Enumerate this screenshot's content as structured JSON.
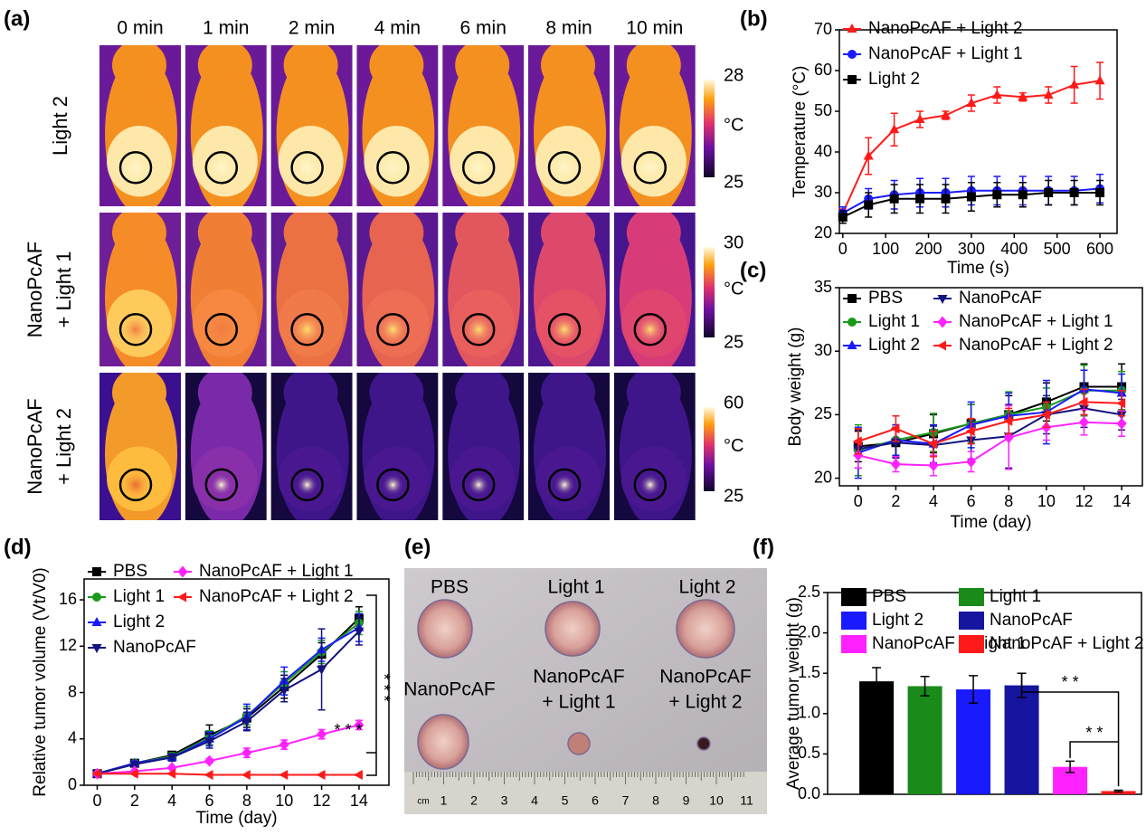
{
  "panel_labels": [
    "(a)",
    "(b)",
    "(c)",
    "(d)",
    "(e)",
    "(f)"
  ],
  "thermal": {
    "times": [
      "0 min",
      "1 min",
      "2 min",
      "4 min",
      "6 min",
      "8 min",
      "10 min"
    ],
    "rows": [
      {
        "label": [
          "Light 2"
        ],
        "max": 28,
        "min": 25
      },
      {
        "label": [
          "NanoPcAF",
          "+ Light 1"
        ],
        "max": 30,
        "min": 25
      },
      {
        "label": [
          "NanoPcAF",
          "+ Light 2"
        ],
        "max": 60,
        "min": 25
      }
    ],
    "unit": "°C"
  },
  "chart_data": [
    {
      "type": "line",
      "x_label": "Time (s)",
      "y_label": "Temperature (°C)",
      "x": [
        0,
        60,
        120,
        180,
        240,
        300,
        360,
        420,
        480,
        540,
        600
      ],
      "xlim": [
        -8,
        640
      ],
      "xticks": [
        0,
        100,
        200,
        300,
        400,
        500,
        600
      ],
      "ylim": [
        20,
        70
      ],
      "yticks": [
        20,
        30,
        40,
        50,
        60,
        70
      ],
      "legend": "upper left",
      "series": [
        {
          "name": "NanoPcAF + Light 2",
          "color": "#ff1a1a",
          "marker": "triangle-up",
          "values": [
            25,
            39,
            45.5,
            48,
            49,
            52,
            54,
            53.5,
            54,
            56.5,
            57.5
          ],
          "errors": [
            1,
            4.5,
            4,
            2,
            1,
            2,
            2,
            1,
            2,
            4.5,
            4.5
          ]
        },
        {
          "name": "NanoPcAF + Light 1",
          "color": "#1a1aff",
          "marker": "circle",
          "values": [
            25,
            28.5,
            29.5,
            30,
            30,
            30.5,
            30.5,
            30.5,
            30.5,
            30.5,
            31
          ],
          "errors": [
            1.5,
            2.5,
            3.5,
            3.5,
            3.5,
            3.5,
            3.5,
            3.5,
            3.5,
            3.5,
            3.5
          ]
        },
        {
          "name": "Light 2",
          "color": "#000000",
          "marker": "square",
          "values": [
            24,
            27,
            28.5,
            28.5,
            28.5,
            29,
            29.5,
            29.5,
            30,
            30,
            30
          ],
          "errors": [
            1.5,
            3,
            3.5,
            3.5,
            3.5,
            3.5,
            3,
            3,
            3,
            3,
            3
          ]
        }
      ]
    },
    {
      "type": "line",
      "x_label": "Time (day)",
      "y_label": "Body weight (g)",
      "x": [
        0,
        2,
        4,
        6,
        8,
        10,
        12,
        14
      ],
      "xlim": [
        -1,
        15.1
      ],
      "xticks": [
        0,
        2,
        4,
        6,
        8,
        10,
        12,
        14
      ],
      "ylim": [
        19.4,
        35
      ],
      "yticks": [
        20,
        25,
        30,
        35
      ],
      "legend": "upper left",
      "series": [
        {
          "name": "PBS",
          "color": "#000000",
          "marker": "square",
          "values": [
            22.5,
            22.8,
            23.5,
            24.3,
            25,
            26,
            27.2,
            27.2
          ],
          "errors": [
            1.2,
            1.2,
            1.5,
            1.5,
            1.5,
            1.5,
            1.8,
            1.8
          ]
        },
        {
          "name": "Light 1",
          "color": "#1a9a1a",
          "marker": "circle",
          "values": [
            22.2,
            23,
            23.6,
            24.3,
            25,
            25.6,
            26.9,
            26.9
          ],
          "errors": [
            2,
            1.2,
            1.5,
            1.5,
            1.8,
            1.5,
            2,
            1.5
          ]
        },
        {
          "name": "Light 2",
          "color": "#1a1aff",
          "marker": "triangle-up",
          "values": [
            22,
            23,
            22.7,
            24.2,
            24.9,
            25.2,
            27,
            26.7
          ],
          "errors": [
            2,
            1.2,
            1.5,
            1.8,
            1.8,
            2.5,
            1.5,
            1.5
          ]
        },
        {
          "name": "NanoPcAF",
          "color": "#141480",
          "marker": "triangle-down",
          "values": [
            22.3,
            22.8,
            22.6,
            23,
            23.3,
            25,
            25.5,
            25
          ],
          "errors": [
            1.5,
            1.2,
            1.5,
            1.5,
            2.5,
            1.5,
            1.5,
            1.2
          ]
        },
        {
          "name": "NanoPcAF + Light 1",
          "color": "#ff22ff",
          "marker": "diamond",
          "values": [
            21.8,
            21.1,
            21,
            21.3,
            23.2,
            24,
            24.4,
            24.3
          ],
          "errors": [
            1,
            0.6,
            0.8,
            0.8,
            2.5,
            1,
            1,
            1
          ]
        },
        {
          "name": "NanoPcAF + Light 2",
          "color": "#ff1a1a",
          "marker": "triangle-left",
          "values": [
            22.9,
            23.9,
            22.7,
            23.7,
            24.5,
            25,
            26,
            25.9
          ],
          "errors": [
            1,
            1,
            1,
            1,
            1,
            1,
            1,
            1
          ]
        }
      ]
    },
    {
      "type": "line",
      "x_label": "Time (day)",
      "y_label": "Relative tumor volume (Vt/V0)",
      "x": [
        0,
        2,
        4,
        6,
        8,
        10,
        12,
        14
      ],
      "xlim": [
        -0.7,
        15.6
      ],
      "xticks": [
        0,
        2,
        4,
        6,
        8,
        10,
        12,
        14
      ],
      "ylim": [
        0,
        17.8
      ],
      "yticks": [
        0,
        4,
        8,
        12,
        16
      ],
      "legend": "upper left",
      "annotations": [
        "* * *",
        "* * *"
      ],
      "series": [
        {
          "name": "PBS",
          "color": "#000000",
          "marker": "square",
          "values": [
            1,
            1.9,
            2.6,
            4.3,
            5.8,
            8.5,
            11.3,
            14.4
          ],
          "errors": [
            0.1,
            0.2,
            0.3,
            0.9,
            0.8,
            1,
            1,
            1
          ]
        },
        {
          "name": "Light 1",
          "color": "#1a9a1a",
          "marker": "circle",
          "values": [
            1,
            1.9,
            2.5,
            4.1,
            6,
            8.8,
            11.5,
            14
          ],
          "errors": [
            0.1,
            0.2,
            0.3,
            0.6,
            0.8,
            1,
            1,
            1
          ]
        },
        {
          "name": "Light 2",
          "color": "#1a1aff",
          "marker": "triangle-up",
          "values": [
            1,
            1.9,
            2.4,
            4,
            5.9,
            9,
            11.7,
            13.6
          ],
          "errors": [
            0.1,
            0.2,
            0.3,
            0.6,
            1.1,
            1.2,
            1,
            1.2
          ]
        },
        {
          "name": "NanoPcAF",
          "color": "#141480",
          "marker": "triangle-down",
          "values": [
            1,
            1.8,
            2.4,
            3.8,
            5.5,
            8.2,
            10,
            13.3
          ],
          "errors": [
            0.1,
            0.2,
            0.3,
            0.6,
            0.8,
            1,
            3.5,
            1.2
          ]
        },
        {
          "name": "NanoPcAF + Light 1",
          "color": "#ff22ff",
          "marker": "diamond",
          "values": [
            1,
            1.2,
            1.5,
            2.1,
            2.8,
            3.5,
            4.4,
            5.2
          ],
          "errors": [
            0.1,
            0.1,
            0.1,
            0.2,
            0.4,
            0.4,
            0.4,
            0.4
          ]
        },
        {
          "name": "NanoPcAF + Light 2",
          "color": "#ff1a1a",
          "marker": "triangle-left",
          "values": [
            1,
            1,
            1,
            0.9,
            0.9,
            0.9,
            0.9,
            0.9
          ],
          "errors": [
            0.05,
            0.05,
            0.05,
            0.05,
            0.05,
            0.05,
            0.05,
            0.05
          ]
        }
      ]
    },
    {
      "type": "bar",
      "y_label": "Average tumor weight (g)",
      "categories": [
        "PBS",
        "Light 1",
        "Light 2",
        "NanoPcAF",
        "NanoPcAF + Light 1",
        "NanoPcAF + Light 2"
      ],
      "colors": [
        "#000000",
        "#1a8a1a",
        "#1a1aff",
        "#1515a0",
        "#ff22ff",
        "#ff1a1a"
      ],
      "values": [
        1.4,
        1.34,
        1.3,
        1.35,
        0.34,
        0.04
      ],
      "errors": [
        0.17,
        0.12,
        0.17,
        0.15,
        0.07,
        0.01
      ],
      "ylim": [
        0,
        2.5
      ],
      "yticks": [
        {
          "value": 0,
          "label": "0.0"
        },
        0.5,
        {
          "value": 1,
          "label": "1.0"
        },
        1.5,
        {
          "value": 2,
          "label": "2.0"
        },
        2.5
      ],
      "legend": "upper left",
      "annotations": [
        "* *",
        "* *"
      ]
    }
  ],
  "photo": {
    "labels": [
      [
        "PBS"
      ],
      [
        "Light 1"
      ],
      [
        "Light 2"
      ],
      [
        "NanoPcAF"
      ],
      [
        "NanoPcAF",
        "+ Light 1"
      ],
      [
        "NanoPcAF",
        "+ Light 2"
      ]
    ],
    "ruler": [
      "cm",
      "1",
      "2",
      "3",
      "4",
      "5",
      "6",
      "7",
      "8",
      "9",
      "10",
      "11"
    ]
  }
}
